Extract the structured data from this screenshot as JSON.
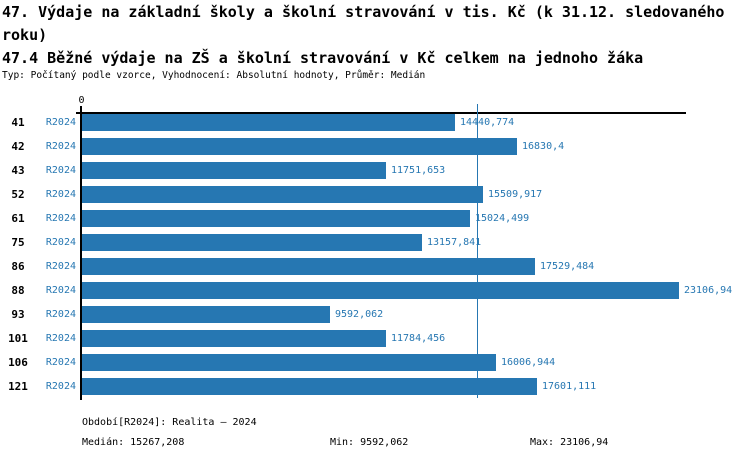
{
  "header": {
    "title_line1": "47. Výdaje na základní školy a školní stravování v tis. Kč (k 31.12. sledovaného",
    "title_line2": "roku)",
    "subtitle": "47.4 Běžné výdaje na ZŠ a školní stravování v Kč celkem na jednoho žáka",
    "meta": "Typ: Počítaný podle vzorce, Vyhodnocení: Absolutní hodnoty, Průměr: Medián"
  },
  "chart_data": {
    "type": "bar",
    "orientation": "horizontal",
    "grid": false,
    "legend_position": "none",
    "axis_zero_label": "0",
    "categories": [
      "41",
      "42",
      "43",
      "52",
      "61",
      "75",
      "86",
      "88",
      "93",
      "101",
      "106",
      "121"
    ],
    "series": [
      {
        "name": "R2024",
        "values": [
          14440.774,
          16830.4,
          11751.653,
          15509.917,
          15024.499,
          13157.841,
          17529.484,
          23106.94,
          9592.062,
          11784.456,
          16006.944,
          17601.111
        ],
        "value_labels": [
          "14440,774",
          "16830,4",
          "11751,653",
          "15509,917",
          "15024,499",
          "13157,841",
          "17529,484",
          "23106,94",
          "9592,062",
          "11784,456",
          "16006,944",
          "17601,111"
        ]
      }
    ],
    "xlim": [
      0,
      23350
    ],
    "median": 15267.208,
    "min": 9592.062,
    "max": 23106.94,
    "bar_color": "#2677b2",
    "median_line_color": "#2677b2",
    "text_accent_color": "#2677b2"
  },
  "footer": {
    "period": "Období[R2024]: Realita – 2024",
    "median": "Medián: 15267,208",
    "min": "Min: 9592,062",
    "max": "Max: 23106,94"
  }
}
